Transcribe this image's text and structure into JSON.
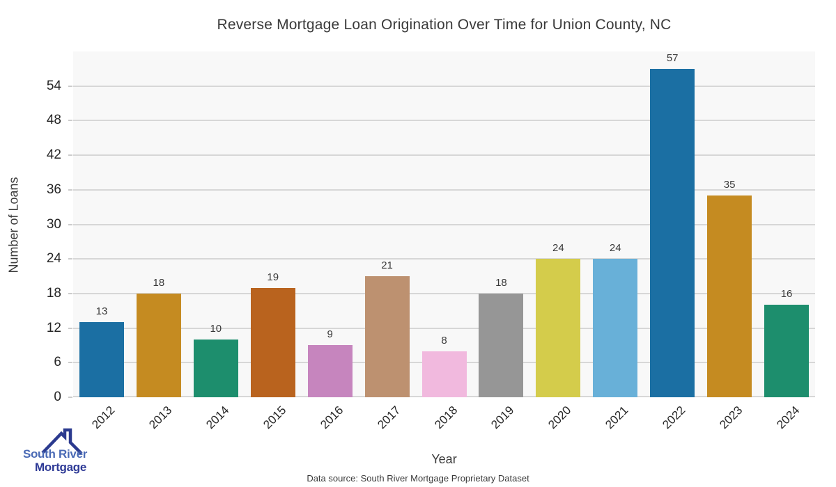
{
  "title": "Reverse Mortgage Loan Origination Over Time for Union County, NC",
  "chart_data": {
    "type": "bar",
    "categories": [
      "2012",
      "2013",
      "2014",
      "2015",
      "2016",
      "2017",
      "2018",
      "2019",
      "2020",
      "2021",
      "2022",
      "2023",
      "2024"
    ],
    "values": [
      13,
      18,
      10,
      19,
      9,
      21,
      8,
      18,
      24,
      24,
      57,
      35,
      16
    ],
    "bar_colors": [
      "#1b6fa3",
      "#c58b21",
      "#1d8e6d",
      "#b9631e",
      "#c685be",
      "#bd9170",
      "#f1b9de",
      "#969696",
      "#d4cc4b",
      "#68b0d8",
      "#1b6fa3",
      "#c58b21",
      "#1d8e6d"
    ],
    "title": "Reverse Mortgage Loan Origination Over Time for Union County, NC",
    "xlabel": "Year",
    "ylabel": "Number of Loans",
    "ylim": [
      0,
      60
    ],
    "yticks": [
      0,
      6,
      12,
      18,
      24,
      30,
      36,
      42,
      48,
      54
    ],
    "grid": "horizontal",
    "legend": "none",
    "plot_bg": "#f8f8f8",
    "grid_color": "#d7d7d7"
  },
  "footer": {
    "source": "Data source: South River Mortgage Proprietary Dataset"
  },
  "logo": {
    "line1": "South River",
    "line2": "Mortgage",
    "line1_color": "#4a6ab5",
    "line2_color": "#2e3a96",
    "roof_color": "#2b3a8f"
  }
}
